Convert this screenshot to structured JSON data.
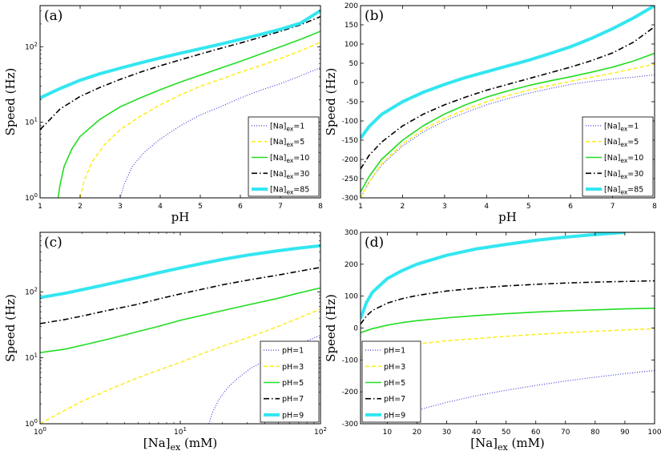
{
  "chart_data": [
    {
      "panel": "(a)",
      "type": "line",
      "xscale": "linear",
      "yscale": "log",
      "xlabel": "pH",
      "ylabel": "Speed (Hz)",
      "xlim": [
        1,
        8
      ],
      "ylim": [
        1,
        350
      ],
      "xticks": [
        "1",
        "2",
        "3",
        "4",
        "5",
        "6",
        "7",
        "8"
      ],
      "yticks": [
        {
          "v": 1,
          "t": "10",
          "e": "0"
        },
        {
          "v": 10,
          "t": "10",
          "e": "1"
        },
        {
          "v": 100,
          "t": "10",
          "e": "2"
        }
      ],
      "series": [
        {
          "name": "[Na]ex=1",
          "base": "[Na]",
          "sub": "ex",
          "eq": "=1",
          "style": "dotted",
          "color": "#4040d8",
          "width": 1.2,
          "x": [
            3.0,
            3.1,
            3.3,
            3.6,
            4.0,
            4.5,
            5,
            5.5,
            6,
            6.5,
            7,
            7.5,
            8
          ],
          "y": [
            1.0,
            1.5,
            2.6,
            4,
            6,
            9,
            12.5,
            16,
            21,
            26.5,
            32.5,
            41,
            53
          ]
        },
        {
          "name": "[Na]ex=5",
          "base": "[Na]",
          "sub": "ex",
          "eq": "=5",
          "style": "dashed",
          "color": "#ffee22",
          "width": 1.6,
          "x": [
            2.0,
            2.1,
            2.3,
            2.6,
            3,
            3.5,
            4,
            4.5,
            5,
            5.5,
            6,
            6.5,
            7,
            7.5,
            8
          ],
          "y": [
            1.0,
            1.7,
            3.0,
            5,
            8,
            12,
            17,
            23,
            30,
            37,
            46,
            56,
            70,
            88,
            115
          ]
        },
        {
          "name": "[Na]ex=10",
          "base": "[Na]",
          "sub": "ex",
          "eq": "=10",
          "style": "solid",
          "color": "#22dd22",
          "width": 1.6,
          "x": [
            1.45,
            1.5,
            1.6,
            1.8,
            2,
            2.5,
            3,
            3.5,
            4,
            4.5,
            5,
            5.5,
            6,
            6.5,
            7,
            7.5,
            8
          ],
          "y": [
            1.0,
            1.5,
            2.6,
            4.5,
            6.5,
            11,
            16,
            21,
            27,
            34,
            42,
            52,
            64,
            80,
            100,
            125,
            160
          ]
        },
        {
          "name": "[Na]ex=30",
          "base": "[Na]",
          "sub": "ex",
          "eq": "=30",
          "style": "dashdot",
          "color": "#000000",
          "width": 1.6,
          "x": [
            1,
            1.5,
            2,
            2.5,
            3,
            3.5,
            4,
            4.5,
            5,
            5.5,
            6,
            6.5,
            7,
            7.5,
            8
          ],
          "y": [
            8,
            15,
            22,
            29,
            37,
            46,
            56,
            67,
            80,
            95,
            112,
            133,
            160,
            195,
            250
          ]
        },
        {
          "name": "[Na]ex=85",
          "base": "[Na]",
          "sub": "ex",
          "eq": "=85",
          "style": "solid",
          "color": "#33e6f0",
          "width": 4,
          "x": [
            1,
            1.5,
            2,
            2.5,
            3,
            3.5,
            4,
            4.5,
            5,
            5.5,
            6,
            6.5,
            7,
            7.5,
            8
          ],
          "y": [
            21,
            28,
            36,
            44,
            52,
            61,
            71,
            82,
            94,
            108,
            125,
            145,
            170,
            205,
            300
          ]
        }
      ]
    },
    {
      "panel": "(b)",
      "type": "line",
      "xscale": "linear",
      "yscale": "linear",
      "xlabel": "pH",
      "ylabel": "Speed (Hz)",
      "xlim": [
        1,
        8
      ],
      "ylim": [
        -300,
        200
      ],
      "xticks": [
        "1",
        "2",
        "3",
        "4",
        "5",
        "6",
        "7",
        "8"
      ],
      "yticks": [
        "-300",
        "-250",
        "-200",
        "-150",
        "-100",
        "-50",
        "0",
        "50",
        "100",
        "150",
        "200"
      ],
      "series": [
        {
          "name": "[Na]ex=1",
          "base": "[Na]",
          "sub": "ex",
          "eq": "=1",
          "style": "dotted",
          "color": "#4040d8",
          "width": 1.2,
          "x": [
            1,
            1.2,
            1.5,
            2,
            2.5,
            3,
            3.5,
            4,
            4.5,
            5,
            5.5,
            6,
            6.5,
            7,
            7.5,
            8
          ],
          "y": [
            -300,
            -260,
            -215,
            -165,
            -128,
            -100,
            -78,
            -58,
            -42,
            -28,
            -16,
            -5,
            3,
            9,
            14,
            20
          ]
        },
        {
          "name": "[Na]ex=5",
          "base": "[Na]",
          "sub": "ex",
          "eq": "=5",
          "style": "dashed",
          "color": "#ffee22",
          "width": 1.6,
          "x": [
            1,
            1.2,
            1.5,
            2,
            2.5,
            3,
            3.5,
            4,
            4.5,
            5,
            5.5,
            6,
            6.5,
            7,
            7.5,
            8
          ],
          "y": [
            -300,
            -260,
            -212,
            -160,
            -122,
            -93,
            -70,
            -50,
            -34,
            -20,
            -8,
            3,
            14,
            24,
            36,
            48
          ]
        },
        {
          "name": "[Na]ex=10",
          "base": "[Na]",
          "sub": "ex",
          "eq": "=10",
          "style": "solid",
          "color": "#22dd22",
          "width": 1.6,
          "x": [
            1,
            1.2,
            1.5,
            2,
            2.5,
            3,
            3.5,
            4,
            4.5,
            5,
            5.5,
            6,
            6.5,
            7,
            7.5,
            8
          ],
          "y": [
            -285,
            -245,
            -200,
            -150,
            -112,
            -82,
            -58,
            -38,
            -22,
            -8,
            4,
            15,
            27,
            40,
            56,
            76
          ]
        },
        {
          "name": "[Na]ex=30",
          "base": "[Na]",
          "sub": "ex",
          "eq": "=30",
          "style": "dashdot",
          "color": "#000000",
          "width": 1.6,
          "x": [
            1,
            1.2,
            1.5,
            2,
            2.5,
            3,
            3.5,
            4,
            4.5,
            5,
            5.5,
            6,
            6.5,
            7,
            7.5,
            8
          ],
          "y": [
            -225,
            -190,
            -155,
            -113,
            -82,
            -58,
            -38,
            -20,
            -5,
            10,
            25,
            40,
            57,
            77,
            105,
            145
          ]
        },
        {
          "name": "[Na]ex=85",
          "base": "[Na]",
          "sub": "ex",
          "eq": "=85",
          "style": "solid",
          "color": "#33e6f0",
          "width": 4,
          "x": [
            1,
            1.2,
            1.5,
            2,
            2.5,
            3,
            3.5,
            4,
            4.5,
            5,
            5.5,
            6,
            6.5,
            7,
            7.5,
            8
          ],
          "y": [
            -145,
            -115,
            -83,
            -50,
            -25,
            -5,
            13,
            28,
            43,
            58,
            75,
            93,
            115,
            140,
            168,
            200
          ]
        }
      ]
    },
    {
      "panel": "(c)",
      "type": "line",
      "xscale": "log",
      "yscale": "log",
      "xlabel": "[Na]ex (mM)",
      "ylabel": "Speed (Hz)",
      "xlim": [
        1,
        100
      ],
      "ylim": [
        1,
        800
      ],
      "xticks": [
        {
          "v": 1,
          "t": "10",
          "e": "0"
        },
        {
          "v": 10,
          "t": "10",
          "e": "1"
        },
        {
          "v": 100,
          "t": "10",
          "e": "2"
        }
      ],
      "yticks": [
        {
          "v": 1,
          "t": "10",
          "e": "0"
        },
        {
          "v": 10,
          "t": "10",
          "e": "1"
        },
        {
          "v": 100,
          "t": "10",
          "e": "2"
        }
      ],
      "series": [
        {
          "name": "pH=1",
          "base": "pH=1",
          "style": "dotted",
          "color": "#4040d8",
          "width": 1.2,
          "x": [
            16,
            17,
            19,
            22,
            26,
            32,
            40,
            50,
            65,
            80,
            100
          ],
          "y": [
            1.0,
            1.5,
            2.4,
            3.6,
            5,
            7,
            9,
            11.5,
            15,
            18,
            22
          ]
        },
        {
          "name": "pH=3",
          "base": "pH=3",
          "style": "dashed",
          "color": "#ffee22",
          "width": 1.6,
          "x": [
            1,
            1.5,
            2,
            3,
            5,
            7,
            10,
            15,
            20,
            30,
            50,
            70,
            100
          ],
          "y": [
            1.0,
            1.6,
            2.2,
            3.2,
            5,
            6.5,
            8.5,
            12,
            15,
            20,
            30,
            40,
            55
          ]
        },
        {
          "name": "pH=5",
          "base": "pH=5",
          "style": "solid",
          "color": "#22dd22",
          "width": 1.6,
          "x": [
            1,
            1.5,
            2,
            3,
            5,
            7,
            10,
            15,
            20,
            30,
            50,
            70,
            100
          ],
          "y": [
            12,
            13.5,
            15.5,
            19,
            25,
            30,
            37,
            45,
            52,
            63,
            80,
            96,
            115
          ]
        },
        {
          "name": "pH=7",
          "base": "pH=7",
          "style": "dashdot",
          "color": "#000000",
          "width": 1.6,
          "x": [
            1,
            1.5,
            2,
            3,
            5,
            7,
            10,
            15,
            20,
            30,
            50,
            70,
            100
          ],
          "y": [
            33,
            38,
            43,
            52,
            65,
            78,
            93,
            112,
            128,
            150,
            180,
            205,
            235
          ]
        },
        {
          "name": "pH=9",
          "base": "pH=9",
          "style": "solid",
          "color": "#33e6f0",
          "width": 4,
          "x": [
            1,
            1.5,
            2,
            3,
            5,
            7,
            10,
            15,
            20,
            30,
            50,
            70,
            100
          ],
          "y": [
            82,
            95,
            108,
            130,
            165,
            195,
            230,
            275,
            310,
            360,
            420,
            460,
            500
          ]
        }
      ]
    },
    {
      "panel": "(d)",
      "type": "line",
      "xscale": "linear",
      "yscale": "linear",
      "xlabel": "[Na]ex (mM)",
      "ylabel": "Speed (Hz)",
      "xlim": [
        1,
        100
      ],
      "ylim": [
        -300,
        300
      ],
      "xticks": [
        "10",
        "20",
        "30",
        "40",
        "50",
        "60",
        "70",
        "80",
        "90",
        "100"
      ],
      "yticks": [
        "-300",
        "-200",
        "-100",
        "0",
        "100",
        "200",
        "300"
      ],
      "series": [
        {
          "name": "pH=1",
          "base": "pH=1",
          "style": "dotted",
          "color": "#4040d8",
          "width": 1.2,
          "x": [
            20,
            25,
            30,
            40,
            50,
            60,
            70,
            80,
            90,
            100
          ],
          "y": [
            -258,
            -245,
            -233,
            -212,
            -195,
            -180,
            -166,
            -154,
            -143,
            -133
          ]
        },
        {
          "name": "pH=3",
          "base": "pH=3",
          "style": "dashed",
          "color": "#ffee22",
          "width": 1.6,
          "x": [
            1,
            3,
            5,
            10,
            15,
            20,
            30,
            40,
            50,
            60,
            70,
            80,
            90,
            100
          ],
          "y": [
            -90,
            -80,
            -73,
            -62,
            -55,
            -50,
            -40,
            -33,
            -26,
            -20,
            -15,
            -10,
            -6,
            -2
          ]
        },
        {
          "name": "pH=5",
          "base": "pH=5",
          "style": "solid",
          "color": "#22dd22",
          "width": 1.6,
          "x": [
            1,
            3,
            5,
            10,
            15,
            20,
            30,
            40,
            50,
            60,
            70,
            80,
            90,
            100
          ],
          "y": [
            -15,
            -8,
            -2,
            9,
            17,
            23,
            32,
            39,
            45,
            50,
            54,
            57,
            60,
            62
          ]
        },
        {
          "name": "pH=7",
          "base": "pH=7",
          "style": "dashdot",
          "color": "#000000",
          "width": 1.6,
          "x": [
            1,
            3,
            5,
            10,
            15,
            20,
            30,
            40,
            50,
            60,
            70,
            80,
            90,
            100
          ],
          "y": [
            12,
            38,
            55,
            78,
            92,
            102,
            116,
            125,
            132,
            137,
            141,
            144,
            146,
            148
          ]
        },
        {
          "name": "pH=9",
          "base": "pH=9",
          "style": "solid",
          "color": "#33e6f0",
          "width": 4,
          "x": [
            1,
            3,
            5,
            10,
            15,
            20,
            30,
            40,
            50,
            60,
            70,
            80,
            90
          ],
          "y": [
            30,
            80,
            112,
            155,
            180,
            200,
            228,
            248,
            262,
            275,
            285,
            293,
            300
          ]
        }
      ]
    }
  ]
}
